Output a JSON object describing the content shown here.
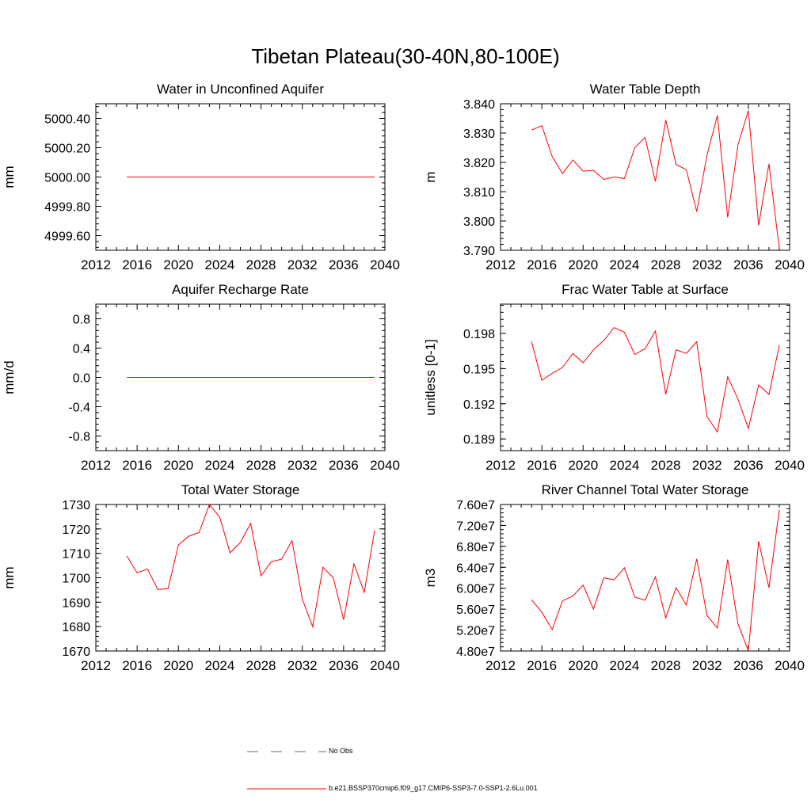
{
  "title": "Tibetan Plateau(30-40N,80-100E)",
  "legend": {
    "obs_label": "No Obs",
    "obs_color": "#5566bb",
    "model_label": "b.e21.BSSP370cmip6.f09_g17.CMIP6-SSP3-7.0-SSP1-2.6Lu.001",
    "model_color": "#ff0000"
  },
  "chart_data": [
    {
      "type": "line",
      "title": "Water in Unconfined Aquifer",
      "ylabel": "mm",
      "xlim": [
        2012,
        2040
      ],
      "xticks": [
        "2012",
        "2016",
        "2020",
        "2024",
        "2028",
        "2032",
        "2036",
        "2040"
      ],
      "ylim": [
        4999.5,
        5000.5
      ],
      "yticks": [
        {
          "v": 4999.6,
          "label": "4999.60"
        },
        {
          "v": 4999.8,
          "label": "4999.80"
        },
        {
          "v": 5000.0,
          "label": "5000.00"
        },
        {
          "v": 5000.2,
          "label": "5000.20"
        },
        {
          "v": 5000.4,
          "label": "5000.40"
        }
      ],
      "x": [
        2015,
        2039
      ],
      "y": [
        5000.0,
        5000.0
      ]
    },
    {
      "type": "line",
      "title": "Water Table Depth",
      "ylabel": "m",
      "xlim": [
        2012,
        2040
      ],
      "xticks": [
        "2012",
        "2016",
        "2020",
        "2024",
        "2028",
        "2032",
        "2036",
        "2040"
      ],
      "ylim": [
        3.79,
        3.84
      ],
      "yticks": [
        {
          "v": 3.79,
          "label": "3.790"
        },
        {
          "v": 3.8,
          "label": "3.800"
        },
        {
          "v": 3.81,
          "label": "3.810"
        },
        {
          "v": 3.82,
          "label": "3.820"
        },
        {
          "v": 3.83,
          "label": "3.830"
        },
        {
          "v": 3.84,
          "label": "3.840"
        }
      ],
      "x": [
        2015,
        2016,
        2017,
        2018,
        2019,
        2020,
        2021,
        2022,
        2023,
        2024,
        2025,
        2026,
        2027,
        2028,
        2029,
        2030,
        2031,
        2032,
        2033,
        2034,
        2035,
        2036,
        2037,
        2038,
        2039
      ],
      "y": [
        3.831,
        3.8325,
        3.822,
        3.8162,
        3.8208,
        3.817,
        3.8173,
        3.8142,
        3.815,
        3.8145,
        3.825,
        3.8285,
        3.8135,
        3.8345,
        3.8193,
        3.8175,
        3.8032,
        3.8225,
        3.836,
        3.8012,
        3.826,
        3.8377,
        3.7985,
        3.8195,
        3.7905
      ]
    },
    {
      "type": "line",
      "title": "Aquifer Recharge Rate",
      "ylabel": "mm/d",
      "xlim": [
        2012,
        2040
      ],
      "xticks": [
        "2012",
        "2016",
        "2020",
        "2024",
        "2028",
        "2032",
        "2036",
        "2040"
      ],
      "ylim": [
        -1.0,
        1.0
      ],
      "yticks": [
        {
          "v": -0.8,
          "label": "-0.8"
        },
        {
          "v": -0.4,
          "label": "-0.4"
        },
        {
          "v": 0.0,
          "label": "0.0"
        },
        {
          "v": 0.4,
          "label": "0.4"
        },
        {
          "v": 0.8,
          "label": "0.8"
        }
      ],
      "x": [
        2015,
        2039
      ],
      "y": [
        0.0,
        0.0
      ]
    },
    {
      "type": "line",
      "title": "Frac Water Table at Surface",
      "ylabel": "unitless [0-1]",
      "xlim": [
        2012,
        2040
      ],
      "xticks": [
        "2012",
        "2016",
        "2020",
        "2024",
        "2028",
        "2032",
        "2036",
        "2040"
      ],
      "ylim": [
        0.188,
        0.2005
      ],
      "yticks": [
        {
          "v": 0.189,
          "label": "0.189"
        },
        {
          "v": 0.192,
          "label": "0.192"
        },
        {
          "v": 0.195,
          "label": "0.195"
        },
        {
          "v": 0.198,
          "label": "0.198"
        }
      ],
      "x": [
        2015,
        2016,
        2017,
        2018,
        2019,
        2020,
        2021,
        2022,
        2023,
        2024,
        2025,
        2026,
        2027,
        2028,
        2029,
        2030,
        2031,
        2032,
        2033,
        2034,
        2035,
        2036,
        2037,
        2038,
        2039
      ],
      "y": [
        0.1973,
        0.194,
        0.1946,
        0.1951,
        0.1963,
        0.1955,
        0.1966,
        0.1974,
        0.1985,
        0.1981,
        0.1962,
        0.1967,
        0.1982,
        0.1928,
        0.1966,
        0.1963,
        0.1973,
        0.1909,
        0.1896,
        0.1943,
        0.1924,
        0.1899,
        0.1936,
        0.1928,
        0.197
      ]
    },
    {
      "type": "line",
      "title": "Total Water Storage",
      "ylabel": "mm",
      "xlim": [
        2012,
        2040
      ],
      "xticks": [
        "2012",
        "2016",
        "2020",
        "2024",
        "2028",
        "2032",
        "2036",
        "2040"
      ],
      "ylim": [
        1670,
        1730
      ],
      "yticks": [
        {
          "v": 1670,
          "label": "1670"
        },
        {
          "v": 1680,
          "label": "1680"
        },
        {
          "v": 1690,
          "label": "1690"
        },
        {
          "v": 1700,
          "label": "1700"
        },
        {
          "v": 1710,
          "label": "1710"
        },
        {
          "v": 1720,
          "label": "1720"
        },
        {
          "v": 1730,
          "label": "1730"
        }
      ],
      "x": [
        2015,
        2016,
        2017,
        2018,
        2019,
        2020,
        2021,
        2022,
        2023,
        2024,
        2025,
        2026,
        2027,
        2028,
        2029,
        2030,
        2031,
        2032,
        2033,
        2034,
        2035,
        2036,
        2037,
        2038,
        2039
      ],
      "y": [
        1709,
        1702,
        1703.6,
        1695.2,
        1695.6,
        1713.5,
        1717,
        1718.6,
        1730,
        1724.8,
        1710.2,
        1714.5,
        1722.2,
        1700.8,
        1706.6,
        1707.6,
        1715.2,
        1691.2,
        1680,
        1704.3,
        1700,
        1682.8,
        1705.7,
        1694,
        1719.3
      ]
    },
    {
      "type": "line",
      "title": "River Channel Total Water Storage",
      "ylabel": "m3",
      "xlim": [
        2012,
        2040
      ],
      "xticks": [
        "2012",
        "2016",
        "2020",
        "2024",
        "2028",
        "2032",
        "2036",
        "2040"
      ],
      "ylim": [
        48000000.0,
        76000000.0
      ],
      "yticks": [
        {
          "v": 48000000.0,
          "label": "4.80e7"
        },
        {
          "v": 52000000.0,
          "label": "5.20e7"
        },
        {
          "v": 56000000.0,
          "label": "5.60e7"
        },
        {
          "v": 60000000.0,
          "label": "6.00e7"
        },
        {
          "v": 64000000.0,
          "label": "6.40e7"
        },
        {
          "v": 68000000.0,
          "label": "6.80e7"
        },
        {
          "v": 72000000.0,
          "label": "7.20e7"
        },
        {
          "v": 76000000.0,
          "label": "7.60e7"
        }
      ],
      "x": [
        2015,
        2016,
        2017,
        2018,
        2019,
        2020,
        2021,
        2022,
        2023,
        2024,
        2025,
        2026,
        2027,
        2028,
        2029,
        2030,
        2031,
        2032,
        2033,
        2034,
        2035,
        2036,
        2037,
        2038,
        2039
      ],
      "y": [
        57800000.0,
        55400000.0,
        52100000.0,
        57600000.0,
        58500000.0,
        60600000.0,
        56000000.0,
        62000000.0,
        61600000.0,
        63900000.0,
        58300000.0,
        57700000.0,
        62200000.0,
        54300000.0,
        60100000.0,
        56800000.0,
        65600000.0,
        54800000.0,
        52400000.0,
        65500000.0,
        53200000.0,
        48000000.0,
        69000000.0,
        60100000.0,
        75000000.0
      ]
    }
  ]
}
